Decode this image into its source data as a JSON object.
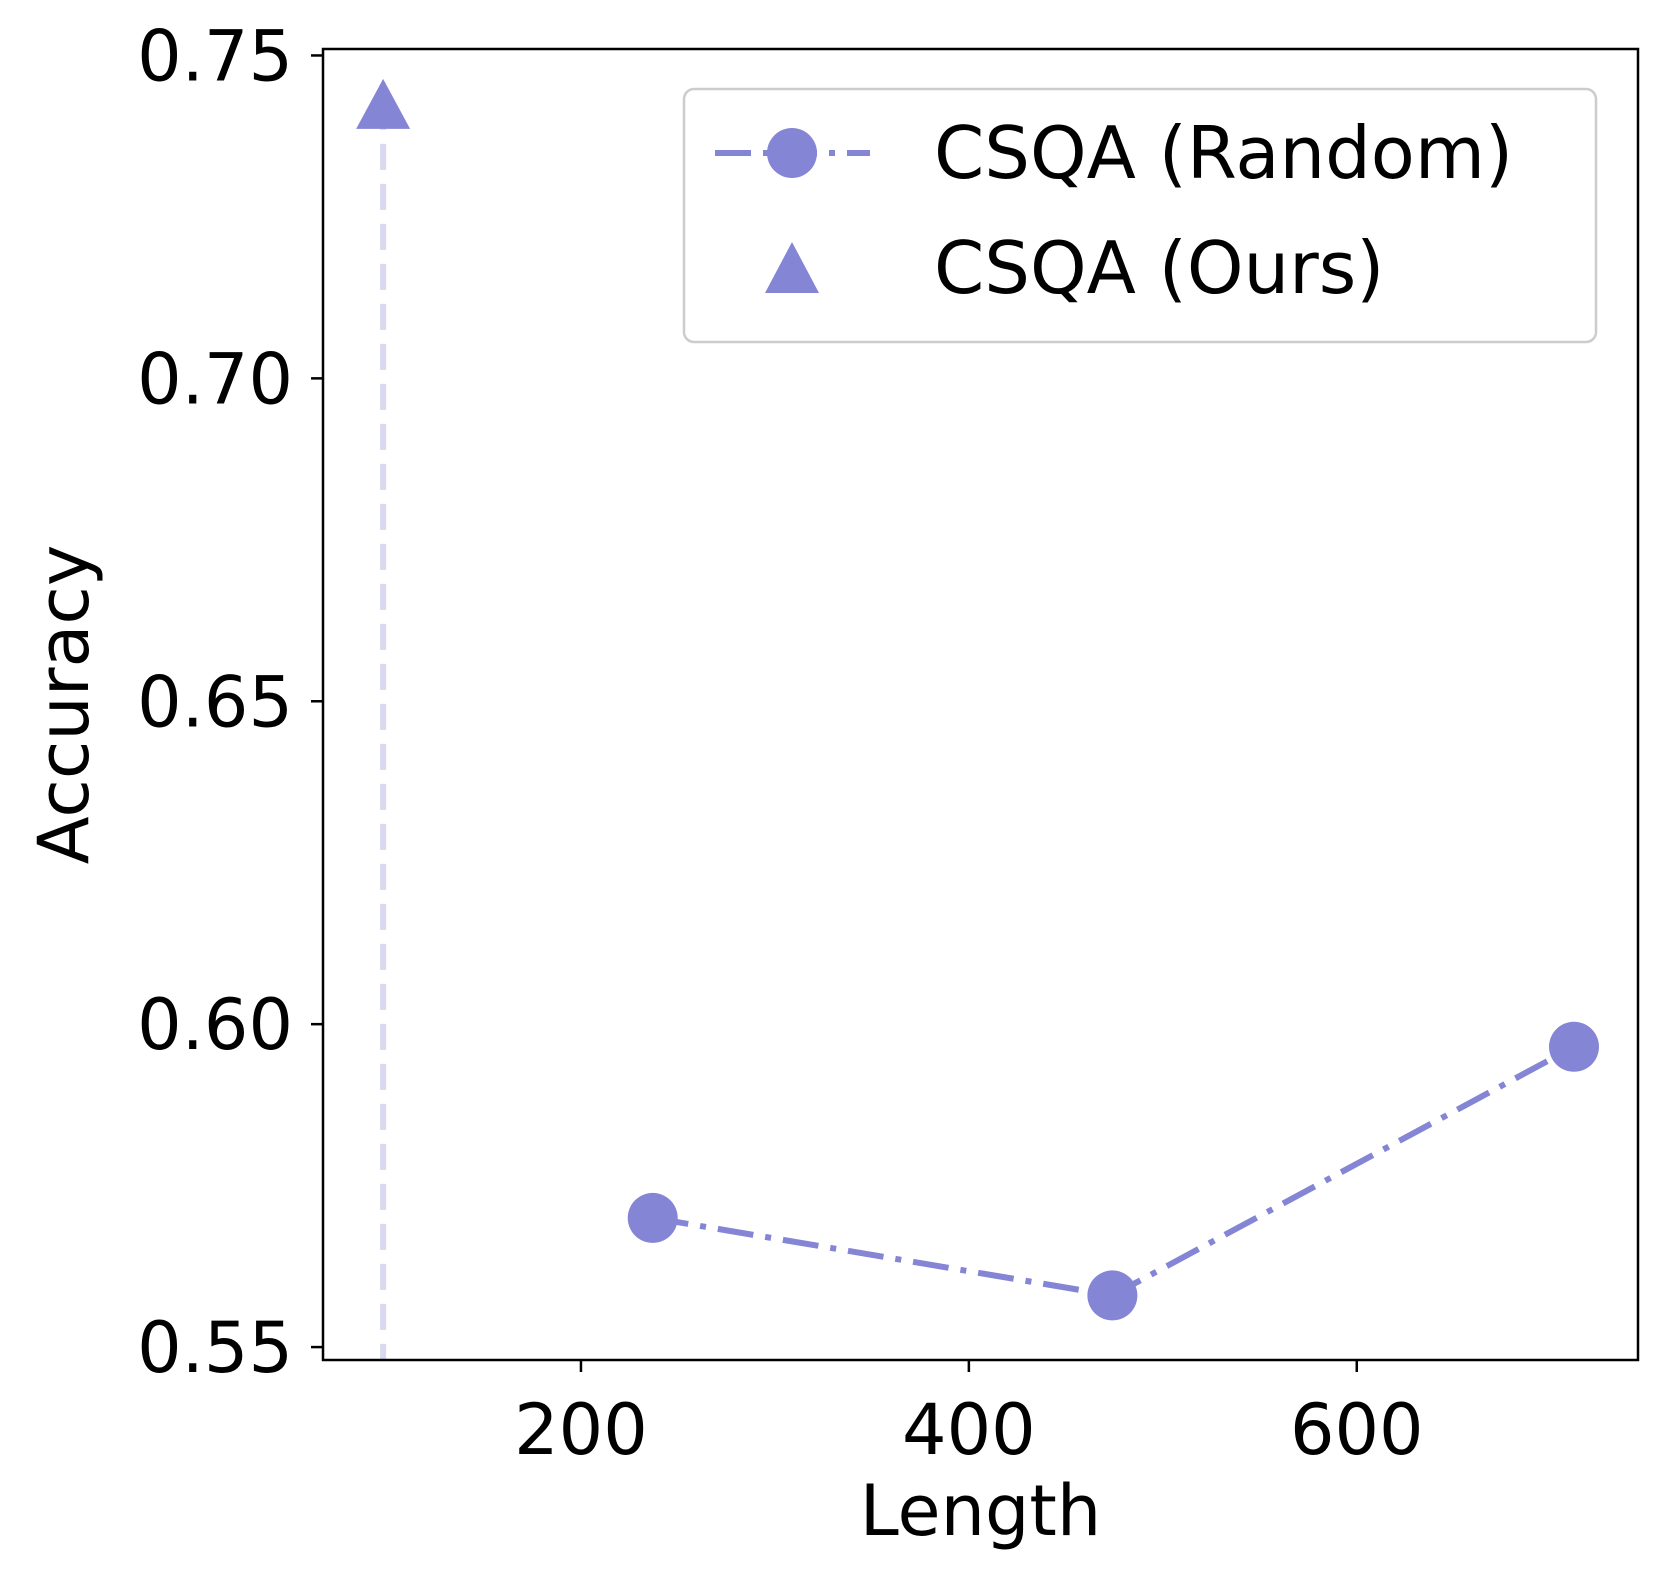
{
  "chart_data": {
    "type": "line",
    "xlabel": "Length",
    "ylabel": "Accuracy",
    "xlim": [
      67,
      745
    ],
    "ylim": [
      0.548,
      0.751
    ],
    "xticks": [
      200,
      400,
      600
    ],
    "xtick_labels": [
      "200",
      "400",
      "600"
    ],
    "yticks": [
      0.55,
      0.6,
      0.65,
      0.7,
      0.75
    ],
    "ytick_labels": [
      "0.55",
      "0.60",
      "0.65",
      "0.70",
      "0.75"
    ],
    "grid": false,
    "legend_position": "top-right",
    "series": [
      {
        "name": "CSQA (Random)",
        "marker": "circle",
        "linestyle": "dash-dot",
        "color": "#8585d6",
        "x": [
          237,
          474,
          712
        ],
        "y": [
          0.57,
          0.558,
          0.5965
        ]
      },
      {
        "name": "CSQA (Ours)",
        "marker": "triangle",
        "linestyle": "none",
        "color": "#8585d6",
        "x": [
          98
        ],
        "y": [
          0.7425
        ]
      }
    ],
    "annotations": [
      {
        "type": "vertical-dashed-line",
        "x": 98,
        "y_from": 0.548,
        "y_to": 0.7425,
        "color": "#d8d8ef"
      }
    ]
  }
}
